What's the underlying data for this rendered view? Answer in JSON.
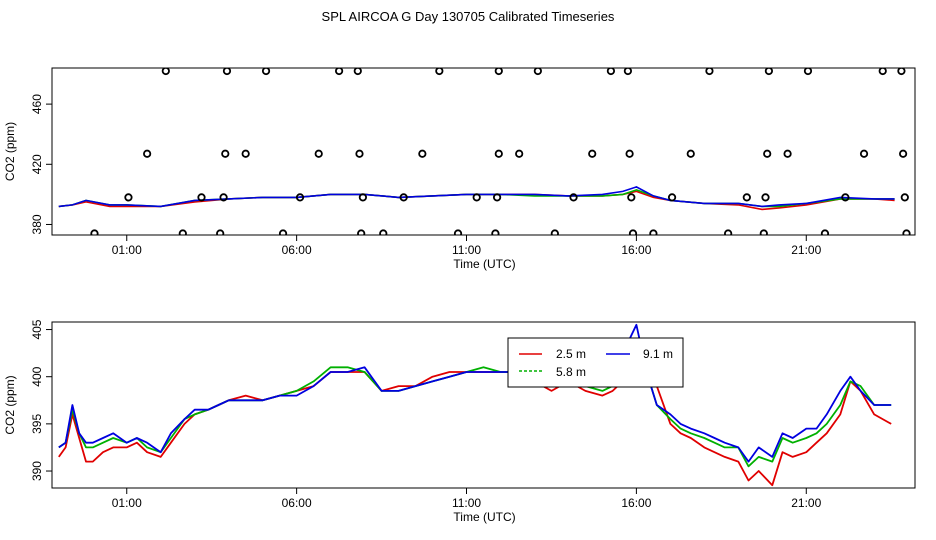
{
  "title": "SPL AIRCOA G  Day 130705  Calibrated Timeseries",
  "colors": {
    "red": "#e00000",
    "green": "#00b000",
    "blue": "#0000e0",
    "black": "#000000"
  },
  "chart_data": [
    {
      "type": "scatter",
      "title": "",
      "xlabel": "Time (UTC)",
      "ylabel": "CO2 (ppm)",
      "xlim": [
        -1.2,
        24.2
      ],
      "ylim": [
        373,
        484
      ],
      "x_ticks": [
        1,
        6,
        11,
        16,
        21
      ],
      "x_tick_labels": [
        "01:00",
        "06:00",
        "11:00",
        "16:00",
        "21:00"
      ],
      "y_ticks": [
        380,
        420,
        460
      ],
      "y_tick_labels": [
        "380",
        "420",
        "460"
      ],
      "grid": false,
      "circles": [
        {
          "x": 0.05,
          "y": 374
        },
        {
          "x": 1.05,
          "y": 398
        },
        {
          "x": 1.6,
          "y": 427
        },
        {
          "x": 2.15,
          "y": 482
        },
        {
          "x": 2.65,
          "y": 374
        },
        {
          "x": 3.2,
          "y": 398
        },
        {
          "x": 3.75,
          "y": 374
        },
        {
          "x": 3.85,
          "y": 398
        },
        {
          "x": 3.9,
          "y": 427
        },
        {
          "x": 3.95,
          "y": 482
        },
        {
          "x": 4.5,
          "y": 427
        },
        {
          "x": 5.1,
          "y": 482
        },
        {
          "x": 5.6,
          "y": 374
        },
        {
          "x": 6.1,
          "y": 398
        },
        {
          "x": 6.65,
          "y": 427
        },
        {
          "x": 7.25,
          "y": 482
        },
        {
          "x": 7.8,
          "y": 482
        },
        {
          "x": 7.85,
          "y": 427
        },
        {
          "x": 7.9,
          "y": 374
        },
        {
          "x": 7.95,
          "y": 398
        },
        {
          "x": 8.55,
          "y": 374
        },
        {
          "x": 9.15,
          "y": 398
        },
        {
          "x": 9.7,
          "y": 427
        },
        {
          "x": 10.2,
          "y": 482
        },
        {
          "x": 10.75,
          "y": 374
        },
        {
          "x": 11.3,
          "y": 398
        },
        {
          "x": 11.85,
          "y": 374
        },
        {
          "x": 11.9,
          "y": 398
        },
        {
          "x": 11.95,
          "y": 427
        },
        {
          "x": 11.95,
          "y": 482
        },
        {
          "x": 12.55,
          "y": 427
        },
        {
          "x": 13.1,
          "y": 482
        },
        {
          "x": 13.6,
          "y": 374
        },
        {
          "x": 14.15,
          "y": 398
        },
        {
          "x": 14.7,
          "y": 427
        },
        {
          "x": 15.25,
          "y": 482
        },
        {
          "x": 15.75,
          "y": 482
        },
        {
          "x": 15.8,
          "y": 427
        },
        {
          "x": 15.85,
          "y": 398
        },
        {
          "x": 15.9,
          "y": 374
        },
        {
          "x": 16.5,
          "y": 374
        },
        {
          "x": 17.05,
          "y": 398
        },
        {
          "x": 17.6,
          "y": 427
        },
        {
          "x": 18.15,
          "y": 482
        },
        {
          "x": 18.7,
          "y": 374
        },
        {
          "x": 19.25,
          "y": 398
        },
        {
          "x": 19.75,
          "y": 374
        },
        {
          "x": 19.8,
          "y": 398
        },
        {
          "x": 19.85,
          "y": 427
        },
        {
          "x": 19.9,
          "y": 482
        },
        {
          "x": 20.45,
          "y": 427
        },
        {
          "x": 21.05,
          "y": 482
        },
        {
          "x": 21.55,
          "y": 374
        },
        {
          "x": 22.15,
          "y": 398
        },
        {
          "x": 22.7,
          "y": 427
        },
        {
          "x": 23.25,
          "y": 482
        },
        {
          "x": 23.8,
          "y": 482
        },
        {
          "x": 23.85,
          "y": 427
        },
        {
          "x": 23.9,
          "y": 398
        },
        {
          "x": 23.95,
          "y": 374
        }
      ],
      "series_lines": [
        {
          "name": "2.5 m",
          "color": "#e00000",
          "x": [
            -1,
            -0.6,
            -0.2,
            0.5,
            1,
            2,
            3,
            4,
            5,
            6,
            7,
            8,
            9,
            10,
            11,
            12,
            13,
            14,
            15,
            15.6,
            16,
            16.5,
            17,
            18,
            19,
            19.7,
            20.2,
            21,
            22,
            23,
            23.6
          ],
          "y": [
            392,
            393,
            395,
            392,
            392,
            392,
            395,
            397,
            398,
            398,
            400,
            400,
            398,
            399,
            400,
            400,
            400,
            399,
            399,
            400,
            402,
            398,
            396,
            394,
            393,
            390,
            391,
            393,
            397,
            397,
            396
          ]
        },
        {
          "name": "5.8 m",
          "color": "#00b000",
          "x": [
            -1,
            -0.6,
            -0.2,
            0.5,
            1,
            2,
            3,
            4,
            5,
            6,
            7,
            8,
            9,
            10,
            11,
            12,
            13,
            14,
            15,
            15.6,
            16,
            16.5,
            17,
            18,
            19,
            19.7,
            20.2,
            21,
            22,
            23,
            23.6
          ],
          "y": [
            392,
            393,
            396,
            393,
            393,
            392,
            396,
            397,
            398,
            398,
            400,
            400,
            398,
            399,
            400,
            400,
            399,
            399,
            399,
            400,
            403,
            399,
            396,
            394,
            394,
            392,
            392,
            394,
            397,
            397,
            397
          ]
        },
        {
          "name": "9.1 m",
          "color": "#0000e0",
          "x": [
            -1,
            -0.6,
            -0.2,
            0.5,
            1,
            2,
            3,
            4,
            5,
            6,
            7,
            8,
            9,
            10,
            11,
            12,
            13,
            14,
            15,
            15.6,
            16,
            16.5,
            17,
            18,
            19,
            19.7,
            20.2,
            21,
            22,
            23,
            23.6
          ],
          "y": [
            392,
            393,
            396,
            393,
            393,
            392,
            396,
            397,
            398,
            398,
            400,
            400,
            398,
            399,
            400,
            400,
            400,
            399,
            400,
            402,
            405,
            399,
            396,
            394,
            394,
            392,
            393,
            394,
            398,
            397,
            397
          ]
        }
      ]
    },
    {
      "type": "line",
      "title": "",
      "xlabel": "Time (UTC)",
      "ylabel": "CO2 (ppm)",
      "xlim": [
        -1.2,
        24.2
      ],
      "ylim": [
        388.2,
        405.8
      ],
      "x_ticks": [
        1,
        6,
        11,
        16,
        21
      ],
      "x_tick_labels": [
        "01:00",
        "06:00",
        "11:00",
        "16:00",
        "21:00"
      ],
      "y_ticks": [
        390,
        395,
        400,
        405
      ],
      "y_tick_labels": [
        "390",
        "395",
        "400",
        "405"
      ],
      "grid": false,
      "legend_position": "top-center",
      "series": [
        {
          "name": "2.5 m",
          "color": "#e00000",
          "x": [
            -1,
            -0.8,
            -0.6,
            -0.4,
            -0.2,
            0,
            0.3,
            0.6,
            1,
            1.3,
            1.6,
            2,
            2.3,
            2.7,
            3,
            3.4,
            3.7,
            4,
            4.5,
            5,
            5.5,
            6,
            6.5,
            7,
            7.5,
            8,
            8.5,
            9,
            9.5,
            10,
            10.5,
            11,
            11.5,
            12,
            12.5,
            13,
            13.5,
            14,
            14.5,
            15,
            15.3,
            15.6,
            16,
            16.3,
            16.6,
            17,
            17.3,
            17.6,
            18,
            18.3,
            18.6,
            19,
            19.3,
            19.6,
            20,
            20.3,
            20.6,
            21,
            21.3,
            21.6,
            22,
            22.3,
            22.6,
            23,
            23.5
          ],
          "y": [
            391.5,
            392.5,
            396.0,
            393.5,
            391.0,
            391.0,
            392.0,
            392.5,
            392.5,
            393.0,
            392.0,
            391.5,
            393.0,
            395.0,
            396.0,
            396.5,
            397.0,
            397.5,
            398.0,
            397.5,
            398.0,
            398.5,
            399.0,
            400.5,
            400.5,
            400.5,
            398.5,
            399.0,
            399.0,
            400.0,
            400.5,
            400.5,
            400.5,
            400.5,
            400.5,
            399.5,
            398.5,
            399.5,
            398.5,
            398.0,
            398.5,
            399.5,
            402.0,
            399.5,
            399.0,
            395.0,
            394.0,
            393.5,
            392.5,
            392.0,
            391.5,
            391.0,
            389.0,
            390.0,
            388.5,
            392.0,
            391.5,
            392.0,
            393.0,
            394.0,
            396.0,
            399.5,
            398.5,
            396.0,
            395.0
          ]
        },
        {
          "name": "5.8 m",
          "color": "#00b000",
          "x": [
            -1,
            -0.8,
            -0.6,
            -0.4,
            -0.2,
            0,
            0.3,
            0.6,
            1,
            1.3,
            1.6,
            2,
            2.3,
            2.7,
            3,
            3.4,
            3.7,
            4,
            4.5,
            5,
            5.5,
            6,
            6.5,
            7,
            7.5,
            8,
            8.5,
            9,
            9.5,
            10,
            10.5,
            11,
            11.5,
            12,
            12.5,
            13,
            13.5,
            14,
            14.5,
            15,
            15.3,
            15.6,
            16,
            16.3,
            16.6,
            17,
            17.3,
            17.6,
            18,
            18.3,
            18.6,
            19,
            19.3,
            19.6,
            20,
            20.3,
            20.6,
            21,
            21.3,
            21.6,
            22,
            22.3,
            22.6,
            23,
            23.5
          ],
          "y": [
            392.5,
            393.0,
            396.5,
            394.0,
            392.5,
            392.5,
            393.0,
            393.5,
            393.0,
            393.5,
            392.5,
            392.0,
            393.5,
            395.5,
            396.0,
            396.5,
            397.0,
            397.5,
            397.5,
            397.5,
            398.0,
            398.5,
            399.5,
            401.0,
            401.0,
            400.5,
            398.5,
            398.5,
            399.0,
            399.5,
            400.0,
            400.5,
            401.0,
            400.5,
            400.5,
            400.0,
            399.0,
            399.5,
            399.0,
            398.5,
            399.0,
            401.0,
            404.0,
            400.5,
            397.0,
            395.5,
            394.5,
            394.0,
            393.5,
            393.0,
            392.5,
            392.5,
            390.5,
            391.5,
            391.0,
            393.5,
            393.0,
            393.5,
            394.0,
            395.0,
            397.0,
            399.5,
            399.0,
            397.0,
            397.0
          ]
        },
        {
          "name": "9.1 m",
          "color": "#0000e0",
          "x": [
            -1,
            -0.8,
            -0.6,
            -0.4,
            -0.2,
            0,
            0.3,
            0.6,
            1,
            1.3,
            1.6,
            2,
            2.3,
            2.7,
            3,
            3.4,
            3.7,
            4,
            4.5,
            5,
            5.5,
            6,
            6.5,
            7,
            7.5,
            8,
            8.5,
            9,
            9.5,
            10,
            10.5,
            11,
            11.5,
            12,
            12.5,
            13,
            13.5,
            14,
            14.5,
            15,
            15.3,
            15.6,
            16,
            16.3,
            16.6,
            17,
            17.3,
            17.6,
            18,
            18.3,
            18.6,
            19,
            19.3,
            19.6,
            20,
            20.3,
            20.6,
            21,
            21.3,
            21.6,
            22,
            22.3,
            22.6,
            23,
            23.5
          ],
          "y": [
            392.5,
            393.0,
            397.0,
            394.0,
            393.0,
            393.0,
            393.5,
            394.0,
            393.0,
            393.5,
            393.0,
            392.0,
            394.0,
            395.5,
            396.5,
            396.5,
            397.0,
            397.5,
            397.5,
            397.5,
            398.0,
            398.0,
            399.0,
            400.5,
            400.5,
            401.0,
            398.5,
            398.5,
            399.0,
            399.5,
            400.0,
            400.5,
            400.5,
            400.5,
            400.5,
            399.5,
            399.0,
            399.5,
            399.0,
            399.0,
            400.0,
            402.5,
            405.5,
            400.5,
            397.0,
            396.0,
            395.0,
            394.5,
            394.0,
            393.5,
            393.0,
            392.5,
            391.0,
            392.5,
            391.5,
            394.0,
            393.5,
            394.5,
            394.5,
            396.0,
            398.5,
            400.0,
            398.5,
            397.0,
            397.0
          ]
        }
      ]
    }
  ]
}
